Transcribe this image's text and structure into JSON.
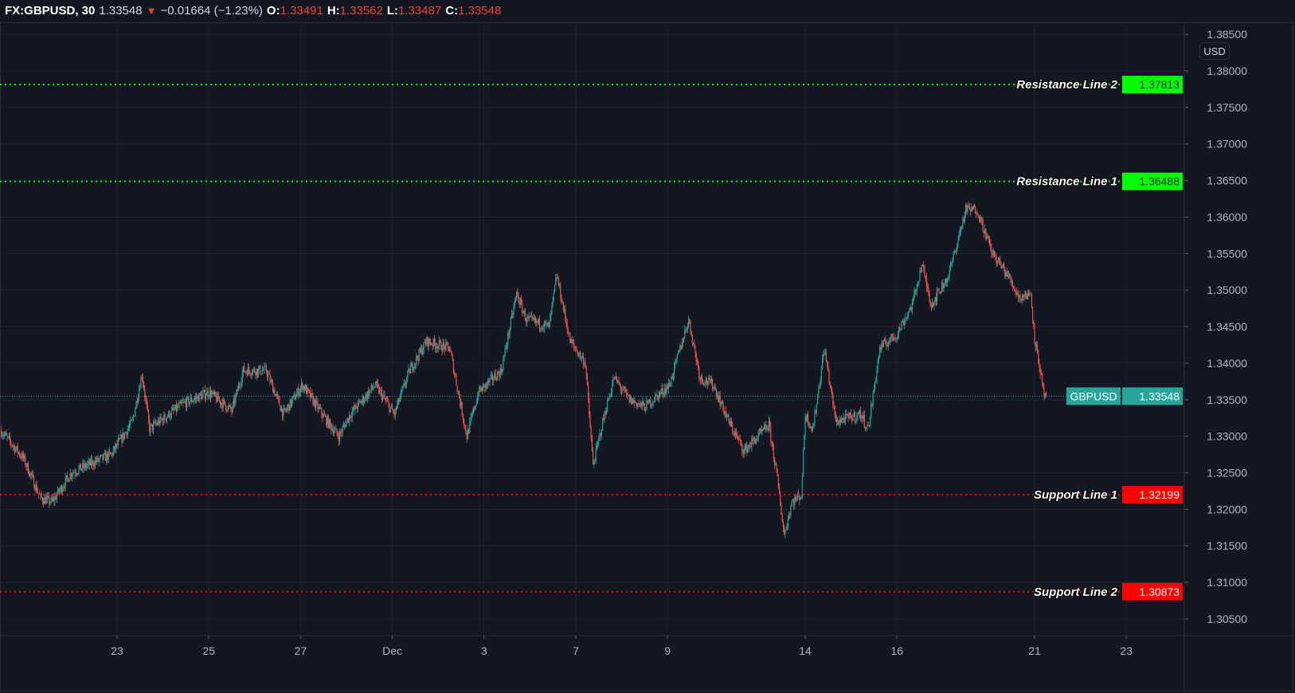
{
  "header": {
    "symbol": "FX:GBPUSD, 30",
    "last": "1.33548",
    "change_icon": "triangle-down-icon",
    "change": "−0.01664 (−1.23%)",
    "o_label": "O:",
    "o": "1.33491",
    "h_label": "H:",
    "h": "1.33562",
    "l_label": "L:",
    "l": "1.33487",
    "c_label": "C:",
    "c": "1.33548"
  },
  "currency_button": "USD",
  "colors": {
    "background": "#131722",
    "grid": "#1f2330",
    "up": "#26a69a",
    "down": "#ef5350",
    "resistance": "#00ff00",
    "support": "#ff0000",
    "last_price": "#26a69a"
  },
  "chart_data": {
    "type": "candlestick",
    "interval": "30",
    "symbol": "GBPUSD",
    "ylim": [
      1.302,
      1.386
    ],
    "y_ticks": [
      "1.38500",
      "1.38000",
      "1.37500",
      "1.37000",
      "1.36500",
      "1.36000",
      "1.35500",
      "1.35000",
      "1.34500",
      "1.34000",
      "1.33500",
      "1.33000",
      "1.32500",
      "1.32000",
      "1.31500",
      "1.31000",
      "1.30500"
    ],
    "x_ticks": [
      {
        "label": "23",
        "date": "2020-11-23"
      },
      {
        "label": "25",
        "date": "2020-11-25"
      },
      {
        "label": "27",
        "date": "2020-11-27"
      },
      {
        "label": "Dec",
        "date": "2020-12-01"
      },
      {
        "label": "3",
        "date": "2020-12-03"
      },
      {
        "label": "7",
        "date": "2020-12-07"
      },
      {
        "label": "9",
        "date": "2020-12-09"
      },
      {
        "label": "14",
        "date": "2020-12-14"
      },
      {
        "label": "16",
        "date": "2020-12-16"
      },
      {
        "label": "21",
        "date": "2020-12-21"
      },
      {
        "label": "23",
        "date": "2020-12-23"
      }
    ],
    "grid": true,
    "approx_price_path": [
      [
        "2020-11-18 11:00",
        1.3308
      ],
      [
        "2020-11-18 23:00",
        1.327
      ],
      [
        "2020-11-19 08:00",
        1.3215
      ],
      [
        "2020-11-19 14:00",
        1.321
      ],
      [
        "2020-11-20 00:00",
        1.325
      ],
      [
        "2020-11-20 21:00",
        1.3275
      ],
      [
        "2020-11-23 08:00",
        1.332
      ],
      [
        "2020-11-23 13:00",
        1.3385
      ],
      [
        "2020-11-23 17:00",
        1.331
      ],
      [
        "2020-11-24 11:00",
        1.3345
      ],
      [
        "2020-11-25 00:00",
        1.336
      ],
      [
        "2020-11-25 12:00",
        1.3335
      ],
      [
        "2020-11-25 18:00",
        1.339
      ],
      [
        "2020-11-26 06:00",
        1.339
      ],
      [
        "2020-11-26 15:00",
        1.333
      ],
      [
        "2020-11-27 01:00",
        1.337
      ],
      [
        "2020-11-27 14:00",
        1.332
      ],
      [
        "2020-11-27 20:00",
        1.33
      ],
      [
        "2020-11-30 02:00",
        1.333
      ],
      [
        "2020-11-30 15:00",
        1.337
      ],
      [
        "2020-12-01 01:00",
        1.333
      ],
      [
        "2020-12-01 09:00",
        1.339
      ],
      [
        "2020-12-01 18:00",
        1.343
      ],
      [
        "2020-12-02 06:00",
        1.342
      ],
      [
        "2020-12-02 15:00",
        1.33
      ],
      [
        "2020-12-02 21:00",
        1.336
      ],
      [
        "2020-12-03 09:00",
        1.339
      ],
      [
        "2020-12-03 17:00",
        1.3495
      ],
      [
        "2020-12-03 22:00",
        1.346
      ],
      [
        "2020-12-04 10:00",
        1.345
      ],
      [
        "2020-12-04 14:00",
        1.352
      ],
      [
        "2020-12-04 21:00",
        1.343
      ],
      [
        "2020-12-07 05:00",
        1.34
      ],
      [
        "2020-12-07 09:00",
        1.326
      ],
      [
        "2020-12-07 15:00",
        1.333
      ],
      [
        "2020-12-07 20:00",
        1.338
      ],
      [
        "2020-12-08 04:00",
        1.335
      ],
      [
        "2020-12-08 12:00",
        1.334
      ],
      [
        "2020-12-09 01:00",
        1.337
      ],
      [
        "2020-12-09 11:00",
        1.346
      ],
      [
        "2020-12-09 17:00",
        1.338
      ],
      [
        "2020-12-10 00:00",
        1.337
      ],
      [
        "2020-12-10 08:00",
        1.332
      ],
      [
        "2020-12-10 16:00",
        1.328
      ],
      [
        "2020-12-11 05:00",
        1.3315
      ],
      [
        "2020-12-11 09:00",
        1.325
      ],
      [
        "2020-12-11 13:00",
        1.3165
      ],
      [
        "2020-12-11 17:00",
        1.321
      ],
      [
        "2020-12-11 22:00",
        1.322
      ],
      [
        "2020-12-14 00:00",
        1.333
      ],
      [
        "2020-12-14 04:00",
        1.331
      ],
      [
        "2020-12-14 10:00",
        1.342
      ],
      [
        "2020-12-14 16:00",
        1.332
      ],
      [
        "2020-12-15 05:00",
        1.333
      ],
      [
        "2020-12-15 09:00",
        1.331
      ],
      [
        "2020-12-15 15:00",
        1.342
      ],
      [
        "2020-12-16 00:00",
        1.344
      ],
      [
        "2020-12-16 08:00",
        1.348
      ],
      [
        "2020-12-16 13:00",
        1.3535
      ],
      [
        "2020-12-16 18:00",
        1.348
      ],
      [
        "2020-12-17 03:00",
        1.352
      ],
      [
        "2020-12-17 12:00",
        1.361
      ],
      [
        "2020-12-17 18:00",
        1.361
      ],
      [
        "2020-12-18 02:00",
        1.355
      ],
      [
        "2020-12-18 10:00",
        1.352
      ],
      [
        "2020-12-18 16:00",
        1.349
      ],
      [
        "2020-12-18 22:00",
        1.3495
      ],
      [
        "2020-12-21 00:00",
        1.3435
      ],
      [
        "2020-12-21 03:00",
        1.339
      ],
      [
        "2020-12-21 05:00",
        1.335
      ],
      [
        "2020-12-21 06:00",
        1.33548
      ]
    ],
    "last_price": {
      "label": "GBPUSD",
      "value": 1.33548,
      "text": "1.33548"
    },
    "horizontal_lines": [
      {
        "name": "Resistance Line 2",
        "value": 1.37813,
        "text": "1.37813",
        "kind": "resistance"
      },
      {
        "name": "Resistance Line 1",
        "value": 1.36488,
        "text": "1.36488",
        "kind": "resistance"
      },
      {
        "name": "Support Line 1",
        "value": 1.32199,
        "text": "1.32199",
        "kind": "support"
      },
      {
        "name": "Support Line 2",
        "value": 1.30873,
        "text": "1.30873",
        "kind": "support"
      }
    ]
  }
}
